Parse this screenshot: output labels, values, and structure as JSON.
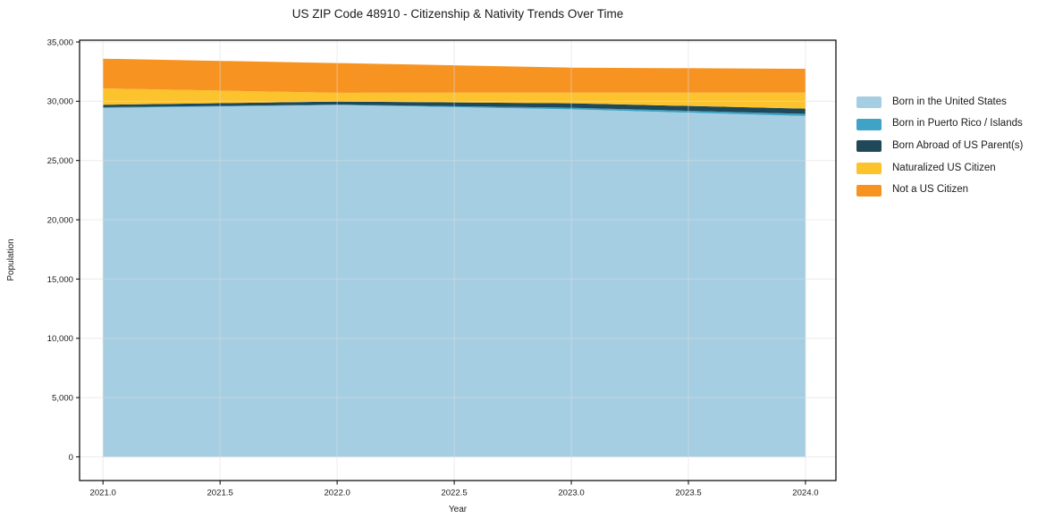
{
  "chart_data": {
    "type": "area",
    "stacked": true,
    "title": "US ZIP Code 48910 - Citizenship & Nativity Trends Over Time",
    "xlabel": "Year",
    "ylabel": "Population",
    "x": [
      2021,
      2022,
      2023,
      2024
    ],
    "series": [
      {
        "name": "Born in the United States",
        "color": "#A6CEE3",
        "values": [
          29430,
          29680,
          29320,
          28750
        ]
      },
      {
        "name": "Born in Puerto Rico / Islands",
        "color": "#3EA3C5",
        "values": [
          70,
          40,
          130,
          180
        ]
      },
      {
        "name": "Born Abroad of US Parent(s)",
        "color": "#1F4859",
        "values": [
          200,
          260,
          380,
          450
        ]
      },
      {
        "name": "Naturalized US Citizen",
        "color": "#FCC32D",
        "values": [
          1380,
          730,
          900,
          1350
        ]
      },
      {
        "name": "Not a US Citizen",
        "color": "#F79421",
        "values": [
          2510,
          2510,
          2110,
          2010
        ]
      }
    ],
    "xticks": [
      "2021.0",
      "2021.5",
      "2022.0",
      "2022.5",
      "2023.0",
      "2023.5",
      "2024.0"
    ],
    "yticks": [
      "0",
      "5,000",
      "10,000",
      "15,000",
      "20,000",
      "25,000",
      "30,000",
      "35,000"
    ],
    "xlim": [
      2020.9,
      2024.13
    ],
    "ylim": [
      -2000,
      35150
    ],
    "grid": true,
    "legend_position": "right",
    "style": {
      "plot_background": "#ffffff",
      "grid_color": "#dcdcdc",
      "spine_color": "#000000",
      "tick_label_color": "#1a1a1a"
    }
  }
}
